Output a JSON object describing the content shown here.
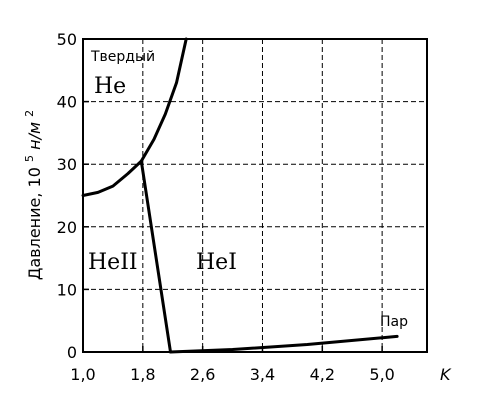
{
  "chart_data": {
    "type": "line",
    "xlabel": "K",
    "ylabel": "Давление, 10",
    "ylabel_sup": "5",
    "ylabel_unit": " н/м",
    "ylabel_unit_sup": "2",
    "xlim": [
      1.0,
      5.6
    ],
    "ylim": [
      0,
      50
    ],
    "x_ticks": [
      1.0,
      1.8,
      2.6,
      3.4,
      4.2,
      5.0
    ],
    "x_tick_labels": [
      "1,0",
      "1,8",
      "2,6",
      "3,4",
      "4,2",
      "5,0"
    ],
    "y_ticks": [
      0,
      10,
      20,
      30,
      40,
      50
    ],
    "y_tick_labels": [
      "0",
      "10",
      "20",
      "30",
      "40",
      "50"
    ],
    "grid": true,
    "curves": [
      {
        "id": "melting",
        "x": [
          1.0,
          1.2,
          1.4,
          1.6,
          1.78,
          1.95,
          2.1,
          2.25,
          2.38
        ],
        "y": [
          25.0,
          25.5,
          26.5,
          28.5,
          30.5,
          34.0,
          38.0,
          43.0,
          50.0
        ]
      },
      {
        "id": "lambda",
        "x": [
          1.78,
          2.17
        ],
        "y": [
          30.5,
          0.0
        ]
      },
      {
        "id": "vapor",
        "x": [
          2.17,
          3.0,
          4.0,
          5.2
        ],
        "y": [
          0.0,
          0.4,
          1.2,
          2.5
        ]
      }
    ],
    "region_labels": {
      "solid_line1": "Твердый",
      "solid_line2": "He",
      "he2": "HeII",
      "he1": "HeI",
      "vapor": "Пар"
    }
  }
}
